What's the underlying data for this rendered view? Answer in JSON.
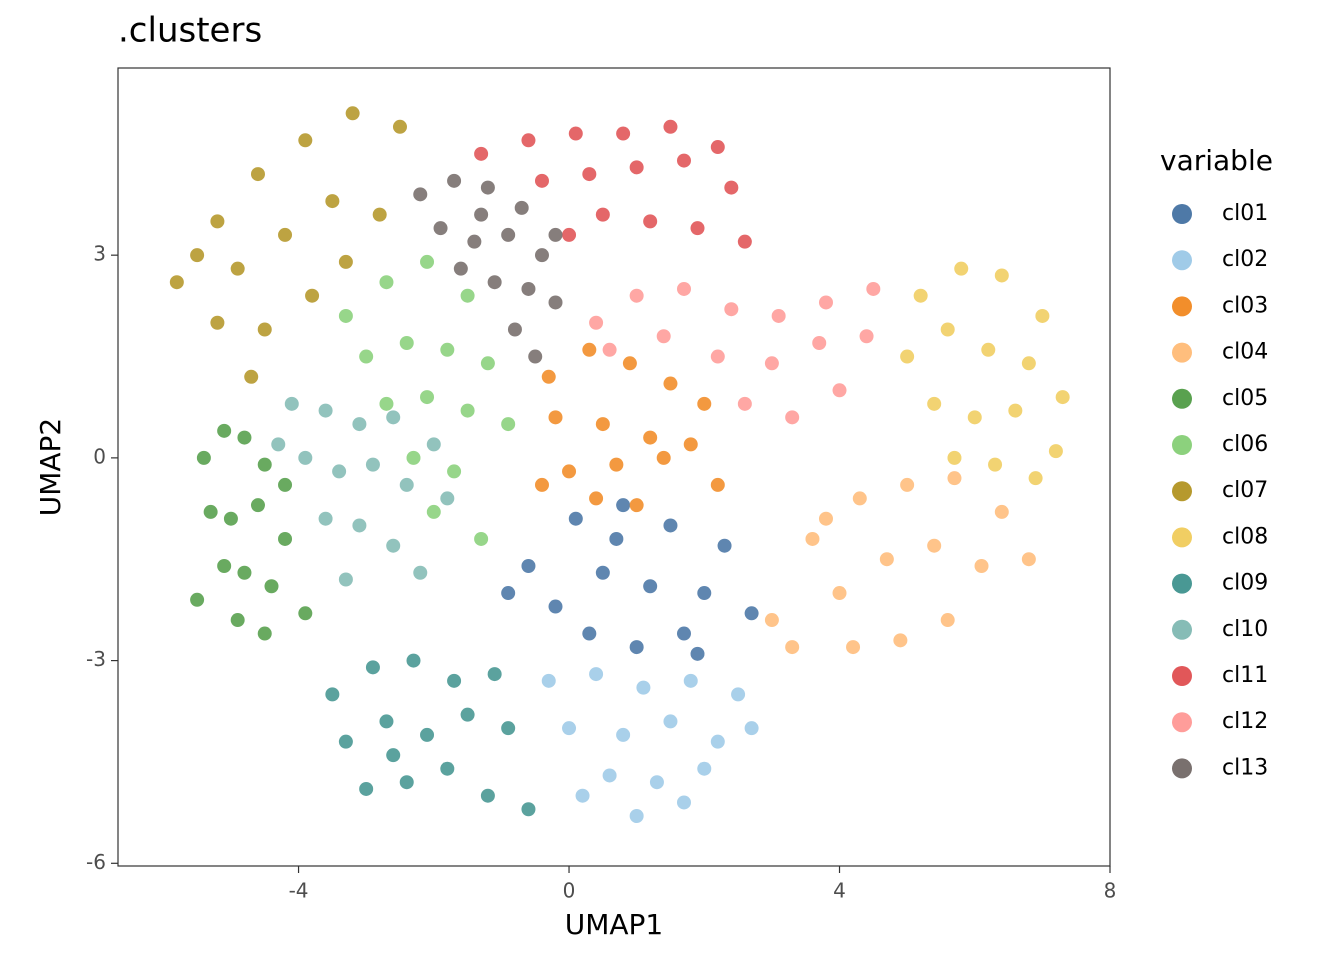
{
  "chart_data": {
    "type": "scatter",
    "title": ".clusters",
    "x_label": "UMAP1",
    "y_label": "UMAP2",
    "legend_title": "variable",
    "xlim": [
      -6.67,
      8.0
    ],
    "ylim": [
      -6.04,
      5.77
    ],
    "xticks": [
      -4,
      0,
      4,
      8
    ],
    "yticks": [
      -6,
      -3,
      0,
      3
    ],
    "legend_position": "right",
    "series": [
      {
        "name": "cl01",
        "color": "#4e79a7",
        "x": [
          -0.6,
          0.1,
          0.8,
          1.5,
          2.3,
          -0.2,
          0.5,
          1.2,
          2.0,
          2.7,
          0.3,
          1.0,
          1.7,
          -0.9,
          0.7,
          1.9
        ],
        "y": [
          -1.6,
          -0.9,
          -0.7,
          -1.0,
          -1.3,
          -2.2,
          -1.7,
          -1.9,
          -2.0,
          -2.3,
          -2.6,
          -2.8,
          -2.6,
          -2.0,
          -1.2,
          -2.9
        ]
      },
      {
        "name": "cl02",
        "color": "#a0cbe8",
        "x": [
          -0.3,
          0.4,
          1.1,
          1.8,
          2.5,
          0.0,
          0.8,
          1.5,
          2.2,
          0.6,
          1.3,
          2.0,
          0.2,
          1.0,
          1.7,
          2.7
        ],
        "y": [
          -3.3,
          -3.2,
          -3.4,
          -3.3,
          -3.5,
          -4.0,
          -4.1,
          -3.9,
          -4.2,
          -4.7,
          -4.8,
          -4.6,
          -5.0,
          -5.3,
          -5.1,
          -4.0
        ]
      },
      {
        "name": "cl03",
        "color": "#f28e2b",
        "x": [
          -0.3,
          0.3,
          0.9,
          1.5,
          2.0,
          -0.2,
          0.5,
          1.2,
          1.8,
          0.0,
          0.7,
          1.4,
          0.4,
          1.0,
          2.2,
          -0.4
        ],
        "y": [
          1.2,
          1.6,
          1.4,
          1.1,
          0.8,
          0.6,
          0.5,
          0.3,
          0.2,
          -0.2,
          -0.1,
          0.0,
          -0.6,
          -0.7,
          -0.4,
          -0.4
        ]
      },
      {
        "name": "cl04",
        "color": "#ffbe7d",
        "x": [
          3.0,
          3.6,
          4.3,
          5.0,
          5.7,
          6.4,
          3.3,
          4.0,
          4.7,
          5.4,
          6.1,
          6.8,
          4.2,
          4.9,
          5.6,
          3.8
        ],
        "y": [
          -2.4,
          -1.2,
          -0.6,
          -0.4,
          -0.3,
          -0.8,
          -2.8,
          -2.0,
          -1.5,
          -1.3,
          -1.6,
          -1.5,
          -2.8,
          -2.7,
          -2.4,
          -0.9
        ]
      },
      {
        "name": "cl05",
        "color": "#59a14f",
        "x": [
          -5.4,
          -5.1,
          -4.8,
          -4.5,
          -5.3,
          -5.0,
          -4.6,
          -4.2,
          -5.1,
          -4.8,
          -4.4,
          -3.9,
          -4.9,
          -4.5,
          -5.5,
          -4.2
        ],
        "y": [
          0.0,
          0.4,
          0.3,
          -0.1,
          -0.8,
          -0.9,
          -0.7,
          -1.2,
          -1.6,
          -1.7,
          -1.9,
          -2.3,
          -2.4,
          -2.6,
          -2.1,
          -0.4
        ]
      },
      {
        "name": "cl06",
        "color": "#8cd17d",
        "x": [
          -3.3,
          -2.7,
          -2.1,
          -1.5,
          -3.0,
          -2.4,
          -1.8,
          -1.2,
          -2.7,
          -2.1,
          -1.5,
          -0.9,
          -2.3,
          -1.7,
          -2.0,
          -1.3
        ],
        "y": [
          2.1,
          2.6,
          2.9,
          2.4,
          1.5,
          1.7,
          1.6,
          1.4,
          0.8,
          0.9,
          0.7,
          0.5,
          0.0,
          -0.2,
          -0.8,
          -1.2
        ]
      },
      {
        "name": "cl07",
        "color": "#b6992d",
        "x": [
          -5.8,
          -5.2,
          -4.6,
          -3.9,
          -3.2,
          -2.5,
          -5.5,
          -4.9,
          -4.2,
          -3.5,
          -2.8,
          -5.2,
          -4.5,
          -3.8,
          -4.7,
          -3.3
        ],
        "y": [
          2.6,
          3.5,
          4.2,
          4.7,
          5.1,
          4.9,
          3.0,
          2.8,
          3.3,
          3.8,
          3.6,
          2.0,
          1.9,
          2.4,
          1.2,
          2.9
        ]
      },
      {
        "name": "cl08",
        "color": "#f1ce63",
        "x": [
          5.2,
          5.8,
          6.4,
          7.0,
          5.0,
          5.6,
          6.2,
          6.8,
          7.3,
          5.4,
          6.0,
          6.6,
          7.2,
          5.7,
          6.3,
          6.9
        ],
        "y": [
          2.4,
          2.8,
          2.7,
          2.1,
          1.5,
          1.9,
          1.6,
          1.4,
          0.9,
          0.8,
          0.6,
          0.7,
          0.1,
          0.0,
          -0.1,
          -0.3
        ]
      },
      {
        "name": "cl09",
        "color": "#499894",
        "x": [
          -3.5,
          -2.9,
          -2.3,
          -1.7,
          -1.1,
          -3.3,
          -2.7,
          -2.1,
          -1.5,
          -0.9,
          -3.0,
          -2.4,
          -1.8,
          -1.2,
          -0.6,
          -2.6
        ],
        "y": [
          -3.5,
          -3.1,
          -3.0,
          -3.3,
          -3.2,
          -4.2,
          -3.9,
          -4.1,
          -3.8,
          -4.0,
          -4.9,
          -4.8,
          -4.6,
          -5.0,
          -5.2,
          -4.4
        ]
      },
      {
        "name": "cl10",
        "color": "#86bcb6",
        "x": [
          -4.1,
          -3.6,
          -3.1,
          -2.6,
          -2.0,
          -3.9,
          -3.4,
          -2.9,
          -2.4,
          -1.8,
          -3.6,
          -3.1,
          -2.6,
          -2.2,
          -3.3,
          -4.3
        ],
        "y": [
          0.8,
          0.7,
          0.5,
          0.6,
          0.2,
          0.0,
          -0.2,
          -0.1,
          -0.4,
          -0.6,
          -0.9,
          -1.0,
          -1.3,
          -1.7,
          -1.8,
          0.2
        ]
      },
      {
        "name": "cl11",
        "color": "#e15759",
        "x": [
          -1.3,
          -0.6,
          0.1,
          0.8,
          1.5,
          2.2,
          -0.4,
          0.3,
          1.0,
          1.7,
          2.4,
          0.5,
          1.2,
          1.9,
          0.0,
          2.6
        ],
        "y": [
          4.5,
          4.7,
          4.8,
          4.8,
          4.9,
          4.6,
          4.1,
          4.2,
          4.3,
          4.4,
          4.0,
          3.6,
          3.5,
          3.4,
          3.3,
          3.2
        ]
      },
      {
        "name": "cl12",
        "color": "#ff9d9a",
        "x": [
          0.4,
          1.0,
          1.7,
          2.4,
          3.1,
          3.8,
          4.5,
          0.6,
          1.4,
          2.2,
          3.0,
          3.7,
          4.4,
          2.6,
          3.3,
          4.0
        ],
        "y": [
          2.0,
          2.4,
          2.5,
          2.2,
          2.1,
          2.3,
          2.5,
          1.6,
          1.8,
          1.5,
          1.4,
          1.7,
          1.8,
          0.8,
          0.6,
          1.0
        ]
      },
      {
        "name": "cl13",
        "color": "#79706e",
        "x": [
          -2.2,
          -1.7,
          -1.2,
          -0.7,
          -0.2,
          -1.9,
          -1.4,
          -0.9,
          -0.4,
          -1.6,
          -1.1,
          -0.6,
          -0.2,
          -0.8,
          -0.5,
          -1.3
        ],
        "y": [
          3.9,
          4.1,
          4.0,
          3.7,
          3.3,
          3.4,
          3.2,
          3.3,
          3.0,
          2.8,
          2.6,
          2.5,
          2.3,
          1.9,
          1.5,
          3.6
        ]
      }
    ]
  }
}
